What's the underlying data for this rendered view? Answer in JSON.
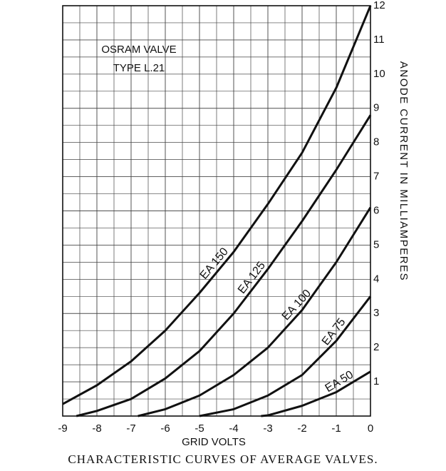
{
  "chart_data": {
    "type": "line",
    "annotations": [
      "OSRAM VALVE",
      "TYPE L.21"
    ],
    "x_label": "GRID VOLTS",
    "y_label": "ANODE CURRENT IN MILLIAMPERES",
    "caption": "CHARACTERISTIC CURVES OF AVERAGE VALVES.",
    "xlim": [
      -9,
      0
    ],
    "xticks": [
      -9,
      -8,
      -7,
      -6,
      -5,
      -4,
      -3,
      -2,
      -1,
      0
    ],
    "ylim": [
      0,
      12
    ],
    "yticks": [
      1,
      2,
      3,
      4,
      5,
      6,
      7,
      8,
      9,
      10,
      11,
      12
    ],
    "grid": true,
    "series": [
      {
        "name": "EA 150",
        "color": "#111111",
        "x": [
          -9,
          -8,
          -7,
          -6,
          -5,
          -4,
          -3,
          -2,
          -1,
          0
        ],
        "values": [
          0.35,
          0.9,
          1.6,
          2.5,
          3.6,
          4.8,
          6.2,
          7.7,
          9.6,
          12
        ]
      },
      {
        "name": "EA 125",
        "color": "#111111",
        "x": [
          -8.6,
          -8,
          -7,
          -6,
          -5,
          -4,
          -3,
          -2,
          -1,
          0
        ],
        "values": [
          0,
          0.15,
          0.5,
          1.1,
          1.9,
          3.0,
          4.3,
          5.7,
          7.2,
          8.8
        ]
      },
      {
        "name": "EA 100",
        "color": "#111111",
        "x": [
          -6.8,
          -6,
          -5,
          -4,
          -3,
          -2,
          -1,
          0
        ],
        "values": [
          0,
          0.2,
          0.6,
          1.2,
          2.0,
          3.1,
          4.5,
          6.1
        ]
      },
      {
        "name": "EA 75",
        "color": "#111111",
        "x": [
          -5.0,
          -4,
          -3,
          -2,
          -1,
          0
        ],
        "values": [
          0,
          0.2,
          0.6,
          1.2,
          2.2,
          3.5
        ]
      },
      {
        "name": "EA 50",
        "color": "#111111",
        "x": [
          -3.2,
          -3,
          -2,
          -1,
          0
        ],
        "values": [
          0,
          0.02,
          0.3,
          0.7,
          1.3
        ]
      }
    ]
  }
}
